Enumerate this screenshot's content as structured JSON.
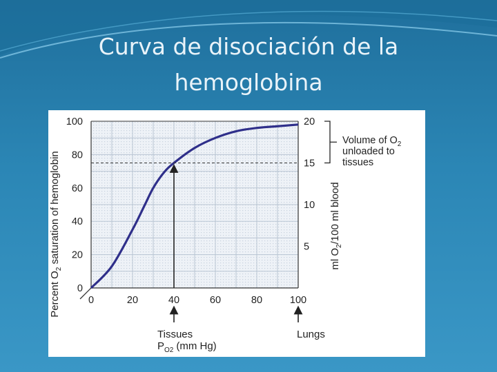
{
  "slide": {
    "title_line1": "Curva de disociación de la",
    "title_line2": "hemoglobina",
    "colors": {
      "background": "#2b86b5",
      "title": "#e9f3f9",
      "curve": "#2f2f8a",
      "plot_bg": "#e8eef5"
    }
  },
  "chart_data": {
    "type": "line",
    "title": "",
    "x": [
      0,
      10,
      20,
      26,
      30,
      35,
      40,
      50,
      60,
      70,
      80,
      90,
      100
    ],
    "series": [
      {
        "values": [
          0,
          13,
          35,
          50,
          60,
          69,
          75,
          84,
          90,
          94,
          96,
          97,
          98
        ]
      }
    ],
    "xlim": [
      0,
      100
    ],
    "ylim": [
      0,
      100
    ],
    "y2lim": [
      0,
      20
    ],
    "x_ticks": [
      "0",
      "20",
      "40",
      "60",
      "80",
      "100"
    ],
    "y_ticks": [
      "0",
      "20",
      "40",
      "60",
      "80",
      "100"
    ],
    "y2_ticks": [
      "5",
      "10",
      "15",
      "20"
    ],
    "xlabel_line1": "Tissues",
    "xlabel_line2": "P",
    "xlabel_sub": "O2",
    "xlabel_unit": "(mm Hg)",
    "ylabel": "Percent O",
    "ylabel_sub": "2",
    "ylabel_rest": " saturation of hemoglobin",
    "y2label": "ml O",
    "y2label_sub": "2",
    "y2label_rest": "/100 ml blood",
    "reference_line_y": 75,
    "tissues_x": 40,
    "lungs_x": 100,
    "lungs_label": "Lungs",
    "bracket_label_line1": "Volume of O",
    "bracket_label_sub": "2",
    "bracket_label_line2": "unloaded to",
    "bracket_label_line3": "tissues",
    "grid": true
  }
}
